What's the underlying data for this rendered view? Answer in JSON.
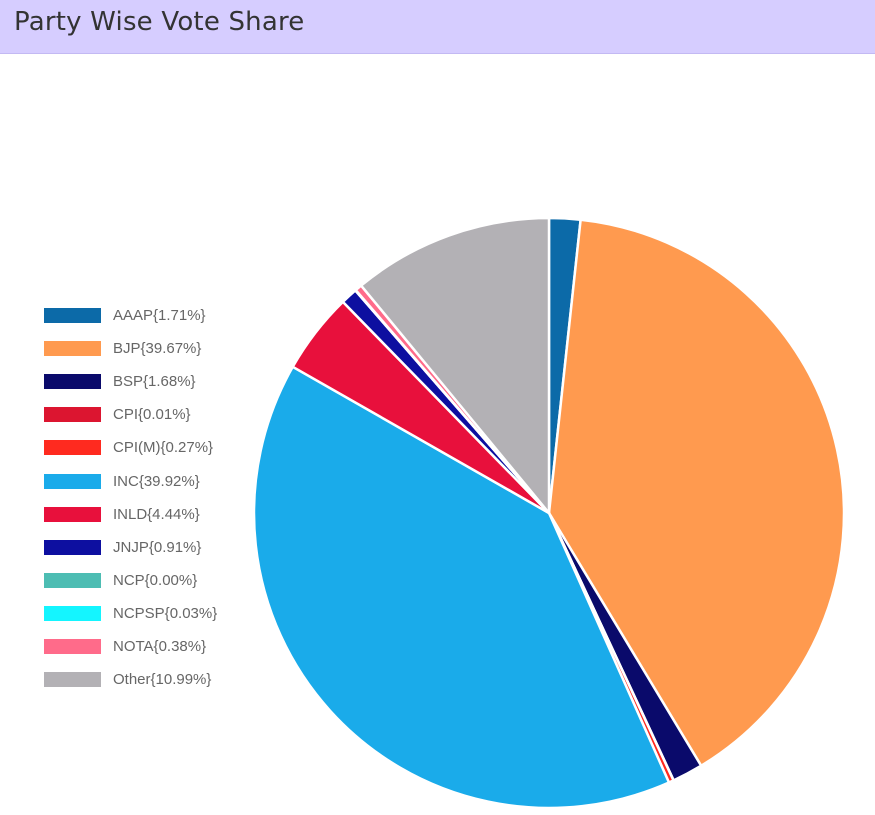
{
  "header": {
    "title": "Party Wise Vote Share"
  },
  "chart_data": {
    "type": "pie",
    "title": "Party Wise Vote Share",
    "legend_position": "left",
    "slices": [
      {
        "name": "AAAP",
        "label": "AAAP{1.71%}",
        "value": 1.71,
        "color": "#0c6aa8"
      },
      {
        "name": "BJP",
        "label": "BJP{39.67%}",
        "value": 39.67,
        "color": "#ff9a4f"
      },
      {
        "name": "BSP",
        "label": "BSP{1.68%}",
        "value": 1.68,
        "color": "#0a0a6b"
      },
      {
        "name": "CPI",
        "label": "CPI{0.01%}",
        "value": 0.01,
        "color": "#dc1530"
      },
      {
        "name": "CPI(M)",
        "label": "CPI(M){0.27%}",
        "value": 0.27,
        "color": "#ff2a1f"
      },
      {
        "name": "INC",
        "label": "INC{39.92%}",
        "value": 39.92,
        "color": "#1aabea"
      },
      {
        "name": "INLD",
        "label": "INLD{4.44%}",
        "value": 4.44,
        "color": "#e8103c"
      },
      {
        "name": "JNJP",
        "label": "JNJP{0.91%}",
        "value": 0.91,
        "color": "#0d0fa0"
      },
      {
        "name": "NCP",
        "label": "NCP{0.00%}",
        "value": 0.0,
        "color": "#4dbdb3"
      },
      {
        "name": "NCPSP",
        "label": "NCPSP{0.03%}",
        "value": 0.03,
        "color": "#14f5ff"
      },
      {
        "name": "NOTA",
        "label": "NOTA{0.38%}",
        "value": 0.38,
        "color": "#ff6b8a"
      },
      {
        "name": "Other",
        "label": "Other{10.99%}",
        "value": 10.99,
        "color": "#b3b1b5"
      }
    ]
  }
}
